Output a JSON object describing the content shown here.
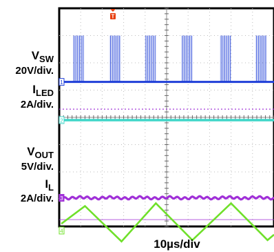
{
  "chart_data": {
    "type": "line",
    "title": "",
    "xlabel": "10µs/div",
    "grid": true,
    "background": "#ffffff",
    "channels": [
      {
        "id": "1",
        "name": "V",
        "name_sub": "SW",
        "scale": "20V/div.",
        "color": "#1f3fd8",
        "waveform": "switching bursts",
        "burst_centers_div": [
          0.9,
          2.6,
          4.25,
          5.95,
          7.75,
          9.4
        ],
        "baseline_div": 2.7
      },
      {
        "id": "2",
        "name": "I",
        "name_sub": "LED",
        "scale": "2A/div.",
        "color": "#3fd6c8",
        "waveform": "dc",
        "level_div": 4.1
      },
      {
        "id": "3",
        "name": "V",
        "name_sub": "OUT",
        "scale": "5V/div.",
        "color": "#a030d8",
        "waveform": "dc with ripple",
        "level_div": 6.95
      },
      {
        "id": "4",
        "name": "I",
        "name_sub": "L",
        "scale": "2A/div.",
        "color": "#6fe02a",
        "waveform": "triangle",
        "peaks_div": [
          [
            0.1,
            7.9
          ],
          [
            1.2,
            7.25
          ],
          [
            2.9,
            8.55
          ],
          [
            4.5,
            7.15
          ],
          [
            6.2,
            8.5
          ],
          [
            8.0,
            7.15
          ],
          [
            9.7,
            8.5
          ],
          [
            10.0,
            8.3
          ]
        ]
      }
    ],
    "trigger": {
      "label": "T",
      "color": "#e84010"
    },
    "grid_divisions": {
      "x": 10,
      "y": 8
    },
    "dotted_reference_color": "#a030d8"
  }
}
